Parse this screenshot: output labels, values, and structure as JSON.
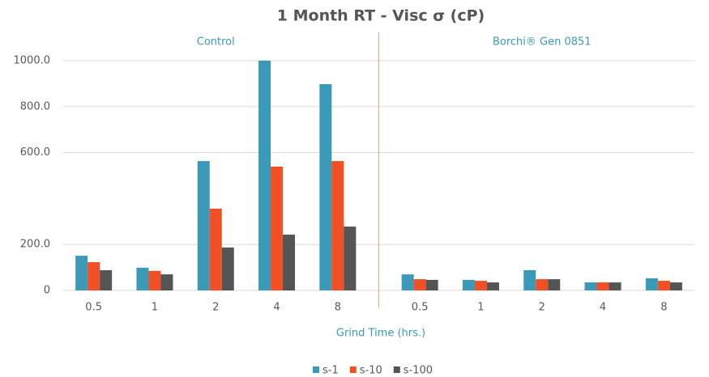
{
  "chart_data": {
    "type": "bar",
    "title": "1 Month RT - Visc σ (cP)",
    "x_label": "Grind Time (hrs.)",
    "groups": [
      "Control",
      "Borchi® Gen 0851"
    ],
    "categories": [
      "0.5",
      "1",
      "2",
      "4",
      "8",
      "0.5",
      "1",
      "2",
      "4",
      "8"
    ],
    "series": [
      {
        "name": "s-1",
        "color": "#3a9ab8",
        "values": [
          151,
          99,
          563,
          1000,
          898,
          70,
          46,
          88,
          35,
          53
        ]
      },
      {
        "name": "s-10",
        "color": "#f05023",
        "values": [
          123,
          85,
          356,
          539,
          563,
          49,
          42,
          49,
          35,
          42
        ]
      },
      {
        "name": "s-100",
        "color": "#555555",
        "values": [
          88,
          70,
          187,
          243,
          278,
          46,
          35,
          49,
          35,
          35
        ]
      }
    ],
    "ylim": [
      0,
      1000
    ],
    "yticks": [
      0,
      {
        "value": 200,
        "label": "200.0"
      },
      {
        "value": 600,
        "label": "600.0"
      },
      {
        "value": 800,
        "label": "800.0"
      },
      {
        "value": 1000,
        "label": "1000.0"
      }
    ],
    "grid": true,
    "legend": "bottom"
  }
}
